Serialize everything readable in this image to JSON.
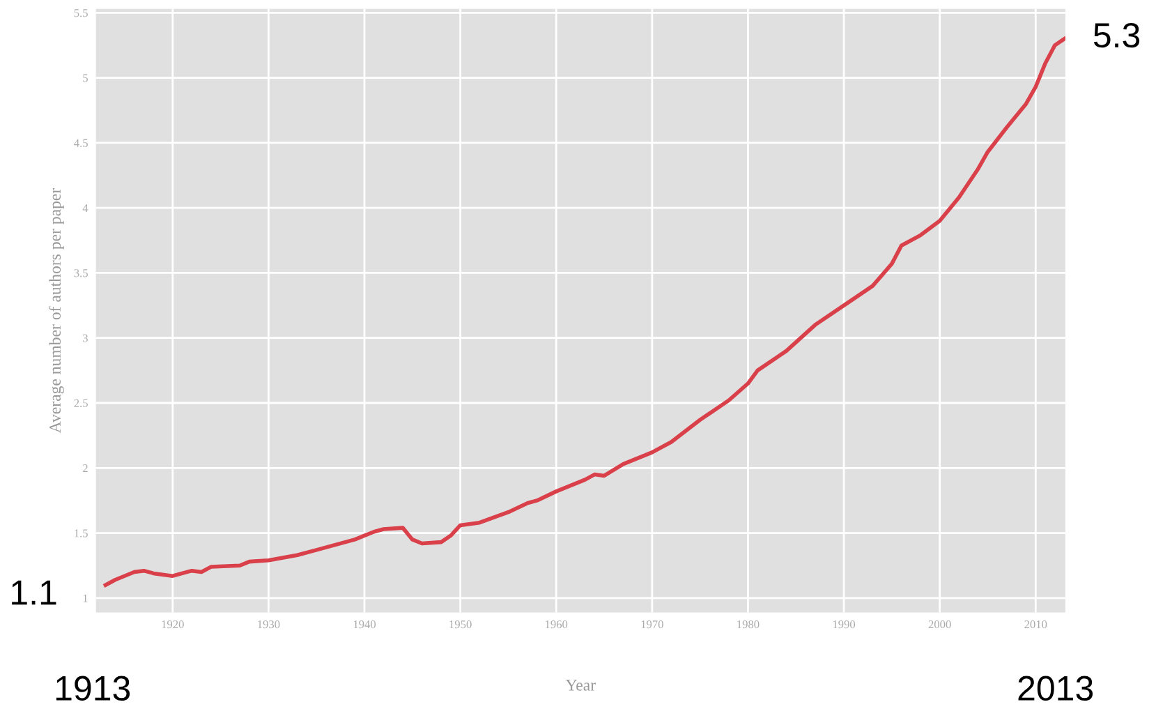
{
  "chart_data": {
    "type": "line",
    "xlabel": "Year",
    "ylabel": "Average number of authors per paper",
    "x": [
      1913,
      1914,
      1916,
      1917,
      1918,
      1920,
      1922,
      1923,
      1924,
      1927,
      1928,
      1930,
      1933,
      1935,
      1937,
      1939,
      1941,
      1942,
      1944,
      1945,
      1946,
      1948,
      1949,
      1950,
      1952,
      1955,
      1957,
      1958,
      1960,
      1963,
      1964,
      1965,
      1967,
      1970,
      1972,
      1975,
      1978,
      1980,
      1981,
      1984,
      1987,
      1990,
      1993,
      1995,
      1996,
      1998,
      2000,
      2002,
      2004,
      2005,
      2007,
      2009,
      2010,
      2011,
      2012,
      2013
    ],
    "series": [
      {
        "color": "#d9404a",
        "values": [
          1.1,
          1.14,
          1.2,
          1.21,
          1.19,
          1.17,
          1.21,
          1.2,
          1.24,
          1.25,
          1.28,
          1.29,
          1.33,
          1.37,
          1.41,
          1.45,
          1.51,
          1.53,
          1.54,
          1.45,
          1.42,
          1.43,
          1.48,
          1.56,
          1.58,
          1.66,
          1.73,
          1.75,
          1.82,
          1.91,
          1.95,
          1.94,
          2.03,
          2.12,
          2.2,
          2.37,
          2.52,
          2.65,
          2.75,
          2.9,
          3.1,
          3.25,
          3.4,
          3.57,
          3.71,
          3.79,
          3.9,
          4.08,
          4.3,
          4.43,
          4.62,
          4.8,
          4.93,
          5.11,
          5.25,
          5.3
        ]
      }
    ],
    "xlim": [
      1912,
      2013.1
    ],
    "ylim": [
      0.89,
      5.53
    ],
    "xticks": [
      1920,
      1930,
      1940,
      1950,
      1960,
      1970,
      1980,
      1990,
      2000,
      2010
    ],
    "yticks": [
      1,
      1.5,
      2,
      2.5,
      3,
      3.5,
      4,
      4.5,
      5,
      5.5
    ],
    "grid": true,
    "legend": false,
    "marker": "none",
    "line_style": "solid",
    "annotations": [
      "1.1",
      "5.3",
      "1913",
      "2013"
    ]
  }
}
